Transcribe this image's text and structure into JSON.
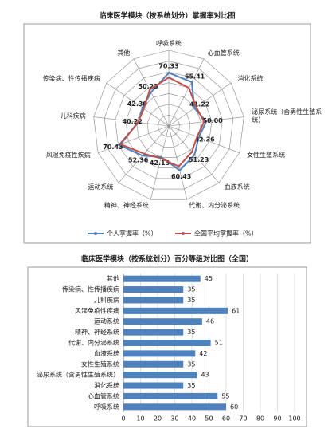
{
  "chart_data": [
    {
      "type": "radar",
      "title": "临床医学模块（按系统划分）掌握率对比图",
      "categories": [
        "呼吸系统",
        "心血管系统",
        "消化系统",
        "泌尿系统（含男性生殖系统）",
        "女性生殖系统",
        "血液系统",
        "代谢、内分泌系统",
        "精神、神经系统",
        "运动系统",
        "风湿免疫性疾病",
        "儿科疾病",
        "传染病、性传播疾病",
        "其他"
      ],
      "rlim": [
        0,
        100
      ],
      "series": [
        {
          "name": "个人掌握率（%）",
          "color": "#4f81bd",
          "values": [
            70.33,
            65.41,
            41.22,
            50.0,
            42.36,
            51.23,
            60.43,
            42.13,
            52.36,
            70.43,
            40.22,
            42.3,
            50.23
          ],
          "value_labels": [
            "70.33",
            "65.41",
            "41.22",
            "50.00",
            "42.36",
            "51.23",
            "60.43",
            "42.13",
            "52.36",
            "70.43",
            "40.22",
            "42.30",
            "50.23"
          ]
        },
        {
          "name": "全国平均掌握率（%）",
          "color": "#c0504d",
          "values": [
            64,
            57,
            44,
            47,
            40,
            46,
            55,
            44,
            49,
            68,
            41,
            40,
            54
          ]
        }
      ]
    },
    {
      "type": "hbar",
      "title": "临床医学模块（按系统划分）百分等级对比图（全国）",
      "categories": [
        "呼吸系统",
        "心血管系统",
        "消化系统",
        "泌尿系统（含男性生殖系统）",
        "女性生殖系统",
        "血液系统",
        "代谢、内分泌系统",
        "精神、神经系统",
        "运动系统",
        "风湿免疫性疾病",
        "儿科疾病",
        "传染病、性传播疾病",
        "其他"
      ],
      "values": [
        60,
        55,
        35,
        43,
        35,
        42,
        51,
        35,
        46,
        61,
        35,
        35,
        45
      ],
      "color": "#4f81bd",
      "xlim": [
        0,
        100
      ],
      "xticks": [
        0,
        10,
        20,
        30,
        40,
        50,
        60,
        70,
        80,
        90,
        100
      ],
      "grid": true
    }
  ]
}
